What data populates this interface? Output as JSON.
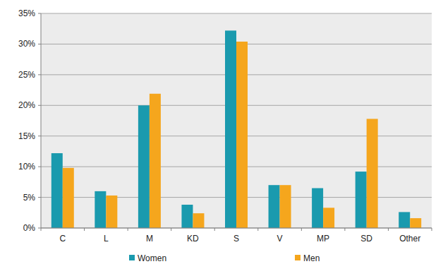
{
  "chart_data": {
    "type": "bar",
    "categories": [
      "C",
      "L",
      "M",
      "KD",
      "S",
      "V",
      "MP",
      "SD",
      "Other"
    ],
    "series": [
      {
        "name": "Women",
        "color": "#1a9aae",
        "values": [
          12.2,
          6.0,
          20.0,
          3.8,
          32.2,
          7.0,
          6.5,
          9.2,
          2.6
        ]
      },
      {
        "name": "Men",
        "color": "#f5a61d",
        "values": [
          9.8,
          5.3,
          21.9,
          2.4,
          30.4,
          7.0,
          3.3,
          17.8,
          1.6
        ]
      }
    ],
    "ylim": [
      0,
      35
    ],
    "yticks": [
      {
        "value": 0,
        "label": "0%"
      },
      {
        "value": 5,
        "label": "5%"
      },
      {
        "value": 10,
        "label": "10%"
      },
      {
        "value": 15,
        "label": "15%"
      },
      {
        "value": 20,
        "label": "20%"
      },
      {
        "value": 25,
        "label": "25%"
      },
      {
        "value": 30,
        "label": "30%"
      },
      {
        "value": 35,
        "label": "35%"
      }
    ],
    "grid": true,
    "legend": "bottom"
  }
}
